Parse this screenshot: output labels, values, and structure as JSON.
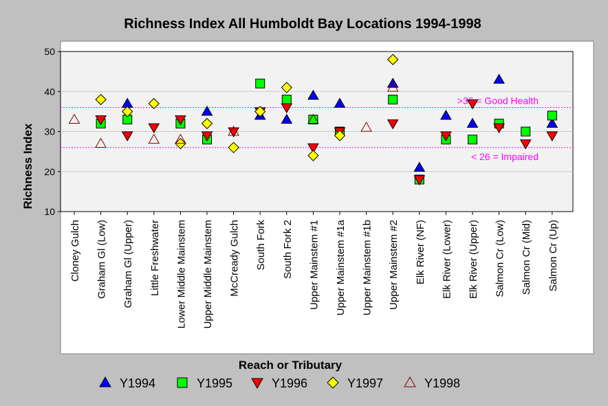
{
  "chart_data": {
    "type": "scatter",
    "title": "Richness Index All Humboldt Bay Locations 1994-1998",
    "xlabel": "Reach or Tributary",
    "ylabel": "Richness Index",
    "ylim": [
      10,
      50
    ],
    "yticks": [
      10,
      20,
      30,
      40,
      50
    ],
    "grid": "horizontal",
    "legend_position": "bottom",
    "categories": [
      "Cloney Gulch",
      "Graham Gl (Low)",
      "Graham Gl (Upper)",
      "Little Freshwater",
      "Lower Middle Mainstem",
      "Upper Middle Mainstem",
      "McCready Gulch",
      "South Fork",
      "South Fork 2",
      "Upper Mainstem #1",
      "Upper Mainstem #1a",
      "Upper Mainstem #1b",
      "Upper Mainstem #2",
      "Elk River (NF)",
      "Elk River (Lower)",
      "Elk River (Upper)",
      "Salmon Cr (Low)",
      "Salmon Cr (Mid)",
      "Salmon Cr (Up)"
    ],
    "series": [
      {
        "name": "Y1994",
        "marker": "triangle-up",
        "color": "#0000ff",
        "outline": "#000000",
        "values": [
          null,
          null,
          37,
          null,
          null,
          35,
          null,
          34,
          33,
          39,
          37,
          null,
          42,
          21,
          34,
          32,
          43,
          null,
          32
        ]
      },
      {
        "name": "Y1995",
        "marker": "square",
        "color": "#00ff00",
        "outline": "#000000",
        "values": [
          null,
          32,
          33,
          null,
          32,
          28,
          null,
          42,
          38,
          33,
          30,
          null,
          38,
          18,
          28,
          28,
          32,
          30,
          34
        ]
      },
      {
        "name": "Y1996",
        "marker": "triangle-down",
        "color": "#ff0000",
        "outline": "#000000",
        "values": [
          null,
          33,
          29,
          31,
          33,
          29,
          30,
          35,
          36,
          26,
          30,
          null,
          32,
          18,
          29,
          37,
          31,
          27,
          29
        ]
      },
      {
        "name": "Y1997",
        "marker": "diamond",
        "color": "#ffff00",
        "outline": "#000000",
        "values": [
          null,
          38,
          35,
          37,
          27,
          32,
          26,
          35,
          41,
          24,
          29,
          null,
          48,
          null,
          null,
          null,
          null,
          null,
          null
        ]
      },
      {
        "name": "Y1998",
        "marker": "triangle-up-open",
        "color": "#800000",
        "outline": "#800000",
        "values": [
          33,
          27,
          null,
          28,
          28,
          null,
          30,
          null,
          null,
          33,
          null,
          31,
          41,
          null,
          null,
          null,
          null,
          null,
          null
        ]
      }
    ],
    "reference_lines": [
      {
        "y": 36,
        "label": ">36 = Good Health",
        "color": "#ff00ff"
      },
      {
        "y": 26,
        "label": "< 26 = Impaired",
        "color": "#ff00ff"
      }
    ]
  }
}
